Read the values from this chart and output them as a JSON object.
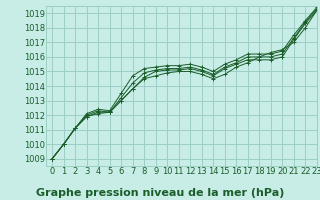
{
  "title": "Graphe pression niveau de la mer (hPa)",
  "bg_color": "#c8ece6",
  "grid_color": "#9dcfc7",
  "line_color": "#1a5e2a",
  "marker_color": "#1a5e2a",
  "xlim": [
    -0.5,
    23
  ],
  "ylim": [
    1008.5,
    1019.5
  ],
  "yticks": [
    1009,
    1010,
    1011,
    1012,
    1013,
    1014,
    1015,
    1016,
    1017,
    1018,
    1019
  ],
  "xticks": [
    0,
    1,
    2,
    3,
    4,
    5,
    6,
    7,
    8,
    9,
    10,
    11,
    12,
    13,
    14,
    15,
    16,
    17,
    18,
    19,
    20,
    21,
    22,
    23
  ],
  "series": [
    [
      1009.0,
      1010.0,
      1011.1,
      1011.9,
      1012.2,
      1012.2,
      1013.0,
      1013.8,
      1014.6,
      1015.0,
      1015.1,
      1015.1,
      1015.2,
      1015.0,
      1014.7,
      1015.2,
      1015.5,
      1015.8,
      1015.8,
      1015.8,
      1016.0,
      1017.2,
      1018.3,
      1019.2
    ],
    [
      1009.0,
      1010.0,
      1011.1,
      1011.9,
      1012.1,
      1012.2,
      1013.0,
      1013.8,
      1014.5,
      1014.7,
      1014.9,
      1015.0,
      1015.0,
      1014.8,
      1014.5,
      1014.8,
      1015.3,
      1015.6,
      1016.0,
      1016.3,
      1016.5,
      1017.0,
      1018.0,
      1019.2
    ],
    [
      1009.0,
      1010.0,
      1011.1,
      1012.0,
      1012.3,
      1012.2,
      1013.2,
      1014.2,
      1014.9,
      1015.1,
      1015.2,
      1015.2,
      1015.3,
      1015.1,
      1014.8,
      1015.3,
      1015.6,
      1016.0,
      1016.0,
      1016.0,
      1016.2,
      1017.3,
      1018.4,
      1019.3
    ],
    [
      1009.0,
      1010.0,
      1011.1,
      1012.1,
      1012.4,
      1012.3,
      1013.5,
      1014.7,
      1015.2,
      1015.3,
      1015.4,
      1015.4,
      1015.5,
      1015.3,
      1015.0,
      1015.5,
      1015.8,
      1016.2,
      1016.2,
      1016.2,
      1016.4,
      1017.5,
      1018.5,
      1019.4
    ]
  ],
  "title_fontsize": 8,
  "tick_fontsize": 6,
  "title_color": "#1a5e2a",
  "tick_color": "#1a5e2a"
}
